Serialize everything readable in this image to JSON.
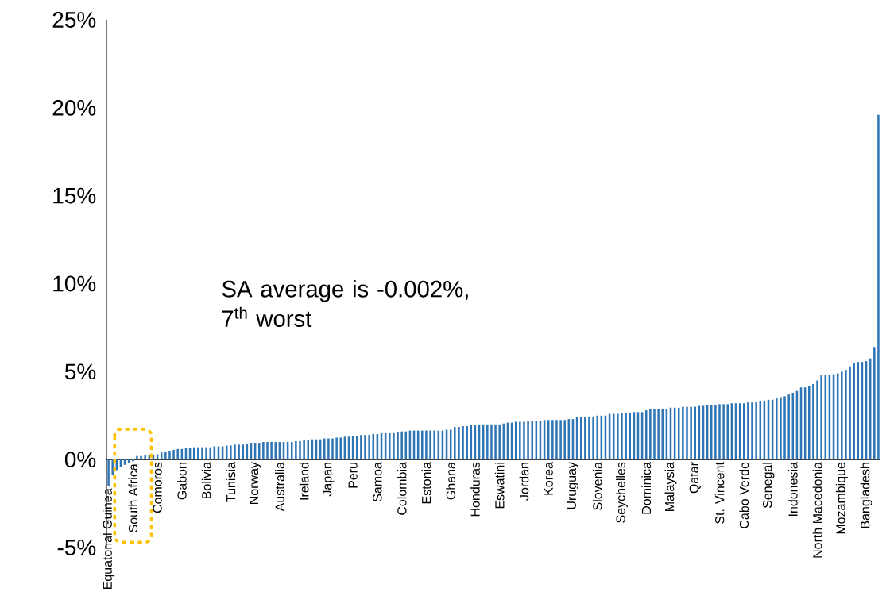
{
  "chart_data": {
    "type": "bar",
    "categories": [
      "Equatorial Guinea",
      null,
      null,
      null,
      null,
      null,
      "South Africa",
      null,
      null,
      null,
      null,
      null,
      "Comoros",
      null,
      null,
      null,
      null,
      null,
      "Gabon",
      null,
      null,
      null,
      null,
      null,
      "Bolivia",
      null,
      null,
      null,
      null,
      null,
      "Tunisia",
      null,
      null,
      null,
      null,
      null,
      "Norway",
      null,
      null,
      null,
      null,
      null,
      "Australia",
      null,
      null,
      null,
      null,
      null,
      "Ireland",
      null,
      null,
      null,
      null,
      null,
      "Japan",
      null,
      null,
      null,
      null,
      null,
      "Peru",
      null,
      null,
      null,
      null,
      null,
      "Samoa",
      null,
      null,
      null,
      null,
      null,
      "Colombia",
      null,
      null,
      null,
      null,
      null,
      "Estonia",
      null,
      null,
      null,
      null,
      null,
      "Ghana",
      null,
      null,
      null,
      null,
      null,
      "Honduras",
      null,
      null,
      null,
      null,
      null,
      "Eswatini",
      null,
      null,
      null,
      null,
      null,
      "Jordan",
      null,
      null,
      null,
      null,
      null,
      "Korea",
      null,
      null,
      null,
      null,
      null,
      "Uruguay",
      null,
      null,
      null,
      null,
      null,
      "Slovenia",
      null,
      null,
      null,
      null,
      null,
      "Seychelles",
      null,
      null,
      null,
      null,
      null,
      "Dominica",
      null,
      null,
      null,
      null,
      null,
      "Malaysia",
      null,
      null,
      null,
      null,
      null,
      "Qatar",
      null,
      null,
      null,
      null,
      null,
      "St. Vincent",
      null,
      null,
      null,
      null,
      null,
      "Cabo Verde",
      null,
      null,
      null,
      null,
      null,
      "Senegal",
      null,
      null,
      null,
      null,
      null,
      "Indonesia",
      null,
      null,
      null,
      null,
      null,
      "North Macedonia",
      null,
      null,
      null,
      null,
      null,
      "Mozambique",
      null,
      null,
      null,
      null,
      null,
      "Bangladesh",
      null,
      null,
      null
    ],
    "values": [
      -1.5,
      -0.9,
      -0.6,
      -0.4,
      -0.3,
      -0.2,
      -0.1,
      0.2,
      0.2,
      0.25,
      0.25,
      0.25,
      0.3,
      0.4,
      0.45,
      0.5,
      0.55,
      0.6,
      0.6,
      0.65,
      0.65,
      0.7,
      0.7,
      0.7,
      0.7,
      0.7,
      0.75,
      0.75,
      0.75,
      0.8,
      0.8,
      0.85,
      0.85,
      0.85,
      0.9,
      0.95,
      0.95,
      0.95,
      1.0,
      1.0,
      1.0,
      1.0,
      1.0,
      1.0,
      1.0,
      1.0,
      1.05,
      1.05,
      1.1,
      1.1,
      1.15,
      1.15,
      1.15,
      1.2,
      1.2,
      1.2,
      1.25,
      1.25,
      1.3,
      1.3,
      1.35,
      1.35,
      1.4,
      1.4,
      1.4,
      1.45,
      1.45,
      1.5,
      1.5,
      1.5,
      1.5,
      1.55,
      1.6,
      1.6,
      1.65,
      1.65,
      1.65,
      1.65,
      1.65,
      1.65,
      1.65,
      1.65,
      1.65,
      1.7,
      1.7,
      1.85,
      1.85,
      1.9,
      1.9,
      1.95,
      1.95,
      2.0,
      2.0,
      2.0,
      2.0,
      2.0,
      2.0,
      2.05,
      2.1,
      2.1,
      2.15,
      2.15,
      2.15,
      2.2,
      2.2,
      2.2,
      2.2,
      2.25,
      2.25,
      2.25,
      2.25,
      2.25,
      2.25,
      2.3,
      2.3,
      2.4,
      2.4,
      2.4,
      2.45,
      2.45,
      2.5,
      2.5,
      2.5,
      2.6,
      2.6,
      2.6,
      2.65,
      2.65,
      2.65,
      2.7,
      2.7,
      2.7,
      2.8,
      2.85,
      2.85,
      2.85,
      2.85,
      2.85,
      2.95,
      2.95,
      2.95,
      3.0,
      3.0,
      3.0,
      3.0,
      3.05,
      3.05,
      3.1,
      3.1,
      3.1,
      3.15,
      3.15,
      3.15,
      3.2,
      3.2,
      3.2,
      3.2,
      3.25,
      3.25,
      3.3,
      3.35,
      3.35,
      3.4,
      3.4,
      3.5,
      3.55,
      3.6,
      3.7,
      3.8,
      3.9,
      4.1,
      4.1,
      4.2,
      4.3,
      4.5,
      4.8,
      4.8,
      4.8,
      4.85,
      4.9,
      5.0,
      5.1,
      5.3,
      5.5,
      5.55,
      5.55,
      5.6,
      5.75,
      6.4,
      19.6
    ],
    "color": "#2e75b6",
    "ylim": [
      -5,
      25
    ],
    "yticks": [
      {
        "value": -5,
        "label": "-5%"
      },
      {
        "value": 0,
        "label": "0%"
      },
      {
        "value": 5,
        "label": "5%"
      },
      {
        "value": 10,
        "label": "10%"
      },
      {
        "value": 15,
        "label": "15%"
      },
      {
        "value": 20,
        "label": "20%"
      },
      {
        "value": 25,
        "label": "25%"
      }
    ],
    "annotations": [
      "SA average is -0.002%, 7$^{th}$ worst"
    ]
  }
}
